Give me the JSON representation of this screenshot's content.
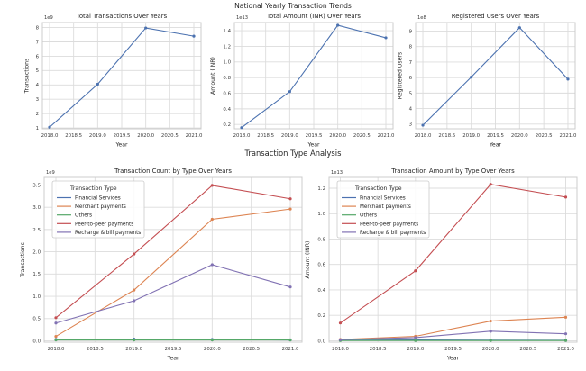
{
  "figure": {
    "suptitle_top": "National Yearly Transaction Trends",
    "suptitle_bottom": "Transaction Type Analysis"
  },
  "palette": {
    "line_blue": "#4C72B0",
    "orange": "#DD8452",
    "green": "#55A868",
    "red": "#C44E52",
    "purple": "#8172B3",
    "grid": "#dcdcdc",
    "frame": "#cccccc",
    "text": "#262626"
  },
  "chart_data": [
    {
      "id": "total-transactions-over-years",
      "type": "line",
      "title": "Total Transactions Over Years",
      "xlabel": "Year",
      "ylabel": "Transactions",
      "offset_text": "1e9",
      "x": [
        2018,
        2019,
        2020,
        2021
      ],
      "xlim": [
        2017.85,
        2021.15
      ],
      "xticks": [
        2018,
        2018.5,
        2019,
        2019.5,
        2020,
        2020.5,
        2021
      ],
      "xtick_labels": [
        "2018.0",
        "2018.5",
        "2019.0",
        "2019.5",
        "2020.0",
        "2020.5",
        "2021.0"
      ],
      "ylim": [
        0.94,
        8.35
      ],
      "yticks": [
        1,
        2,
        3,
        4,
        5,
        6,
        7,
        8
      ],
      "ytick_labels": [
        "1",
        "2",
        "3",
        "4",
        "5",
        "6",
        "7",
        "8"
      ],
      "legend": null,
      "series": [
        {
          "name": "Transactions",
          "color": "#4C72B0",
          "values": [
            1.05,
            4.05,
            7.97,
            7.4
          ]
        }
      ]
    },
    {
      "id": "total-amount-inr-over-years",
      "type": "line",
      "title": "Total Amount (INR) Over Years",
      "xlabel": "Year",
      "ylabel": "Amount (INR)",
      "offset_text": "1e13",
      "x": [
        2018,
        2019,
        2020,
        2021
      ],
      "xlim": [
        2017.85,
        2021.15
      ],
      "xticks": [
        2018,
        2018.5,
        2019,
        2019.5,
        2020,
        2020.5,
        2021
      ],
      "xtick_labels": [
        "2018.0",
        "2018.5",
        "2019.0",
        "2019.5",
        "2020.0",
        "2020.5",
        "2021.0"
      ],
      "ylim": [
        0.145,
        1.505
      ],
      "yticks": [
        0.2,
        0.4,
        0.6,
        0.8,
        1.0,
        1.2,
        1.4
      ],
      "ytick_labels": [
        "0.2",
        "0.4",
        "0.6",
        "0.8",
        "1.0",
        "1.2",
        "1.4"
      ],
      "legend": null,
      "series": [
        {
          "name": "Amount (INR)",
          "color": "#4C72B0",
          "values": [
            0.16,
            0.62,
            1.47,
            1.31
          ]
        }
      ]
    },
    {
      "id": "registered-users-over-years",
      "type": "line",
      "title": "Registered Users Over Years",
      "xlabel": "Year",
      "ylabel": "Registered Users",
      "offset_text": "1e8",
      "x": [
        2018,
        2019,
        2020,
        2021
      ],
      "xlim": [
        2017.85,
        2021.15
      ],
      "xticks": [
        2018,
        2018.5,
        2019,
        2019.5,
        2020,
        2020.5,
        2021
      ],
      "xtick_labels": [
        "2018.0",
        "2018.5",
        "2019.0",
        "2019.5",
        "2020.0",
        "2020.5",
        "2021.0"
      ],
      "ylim": [
        2.7,
        9.55
      ],
      "yticks": [
        3,
        4,
        5,
        6,
        7,
        8,
        9
      ],
      "ytick_labels": [
        "3",
        "4",
        "5",
        "6",
        "7",
        "8",
        "9"
      ],
      "legend": null,
      "series": [
        {
          "name": "Registered Users",
          "color": "#4C72B0",
          "values": [
            2.93,
            6.03,
            9.22,
            5.9
          ]
        }
      ]
    },
    {
      "id": "transaction-count-by-type-over-years",
      "type": "line",
      "title": "Transaction Count by Type Over Years",
      "xlabel": "Year",
      "ylabel": "Transactions",
      "offset_text": "1e9",
      "x": [
        2018,
        2019,
        2020,
        2021
      ],
      "xlim": [
        2017.85,
        2021.15
      ],
      "xticks": [
        2018,
        2018.5,
        2019,
        2019.5,
        2020,
        2020.5,
        2021
      ],
      "xtick_labels": [
        "2018.0",
        "2018.5",
        "2019.0",
        "2019.5",
        "2020.0",
        "2020.5",
        "2021.0"
      ],
      "ylim": [
        -0.03,
        3.67
      ],
      "yticks": [
        0,
        0.5,
        1.0,
        1.5,
        2.0,
        2.5,
        3.0,
        3.5
      ],
      "ytick_labels": [
        "0.0",
        "0.5",
        "1.0",
        "1.5",
        "2.0",
        "2.5",
        "3.0",
        "3.5"
      ],
      "legend": {
        "title": "Transaction Type"
      },
      "series": [
        {
          "name": "Financial Services",
          "color": "#4C72B0",
          "values": [
            0.03,
            0.04,
            0.03,
            0.02
          ]
        },
        {
          "name": "Merchant payments",
          "color": "#DD8452",
          "values": [
            0.1,
            1.14,
            2.73,
            2.96
          ]
        },
        {
          "name": "Others",
          "color": "#55A868",
          "values": [
            0.02,
            0.02,
            0.02,
            0.02
          ]
        },
        {
          "name": "Peer-to-peer payments",
          "color": "#C44E52",
          "values": [
            0.52,
            1.95,
            3.49,
            3.19
          ]
        },
        {
          "name": "Recharge & bill payments",
          "color": "#8172B3",
          "values": [
            0.4,
            0.9,
            1.71,
            1.21
          ]
        }
      ]
    },
    {
      "id": "transaction-amount-by-type-over-years",
      "type": "line",
      "title": "Transaction Amount by Type Over Years",
      "xlabel": "Year",
      "ylabel": "Amount (INR)",
      "offset_text": "1e13",
      "x": [
        2018,
        2019,
        2020,
        2021
      ],
      "xlim": [
        2017.85,
        2021.15
      ],
      "xticks": [
        2018,
        2018.5,
        2019,
        2019.5,
        2020,
        2020.5,
        2021
      ],
      "xtick_labels": [
        "2018.0",
        "2018.5",
        "2019.0",
        "2019.5",
        "2020.0",
        "2020.5",
        "2021.0"
      ],
      "ylim": [
        -0.011,
        1.285
      ],
      "yticks": [
        0,
        0.2,
        0.4,
        0.6,
        0.8,
        1.0,
        1.2
      ],
      "ytick_labels": [
        "0.0",
        "0.2",
        "0.4",
        "0.6",
        "0.8",
        "1.0",
        "1.2"
      ],
      "legend": {
        "title": "Transaction Type"
      },
      "series": [
        {
          "name": "Financial Services",
          "color": "#4C72B0",
          "values": [
            0.005,
            0.006,
            0.005,
            0.004
          ]
        },
        {
          "name": "Merchant payments",
          "color": "#DD8452",
          "values": [
            0.01,
            0.035,
            0.155,
            0.185
          ]
        },
        {
          "name": "Others",
          "color": "#55A868",
          "values": [
            0.002,
            0.002,
            0.002,
            0.002
          ]
        },
        {
          "name": "Peer-to-peer payments",
          "color": "#C44E52",
          "values": [
            0.14,
            0.55,
            1.23,
            1.13
          ]
        },
        {
          "name": "Recharge & bill payments",
          "color": "#8172B3",
          "values": [
            0.008,
            0.025,
            0.075,
            0.055
          ]
        }
      ]
    }
  ]
}
